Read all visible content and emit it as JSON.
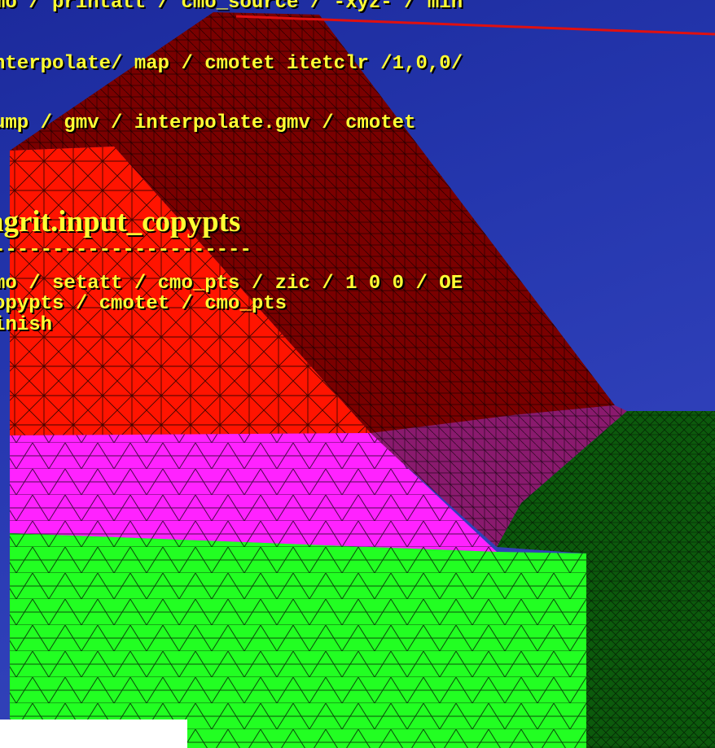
{
  "colors": {
    "background": "#2436ad",
    "text": "#ffff33",
    "top_layer": "#7a0000",
    "red_layer": "#ff1a00",
    "magenta_layer": "#ff22ff",
    "green_layer": "#22ff22",
    "purple_layer": "#8a1a6e",
    "dark_green_layer": "#0c5a0c"
  },
  "code_lines": [
    "mo / printatt / cmo_source / -xyz- / min",
    "nterpolate/ map / cmotet itetclr /1,0,0/",
    "ump / gmv / interpolate.gmv / cmotet"
  ],
  "file_title": "agrit.input_copypts",
  "rule_line": "----------------------",
  "file_lines": [
    "mo / setatt / cmo_pts / zic / 1 0 0 / OE",
    "opypts / cmotet / cmo_pts",
    "inish"
  ]
}
